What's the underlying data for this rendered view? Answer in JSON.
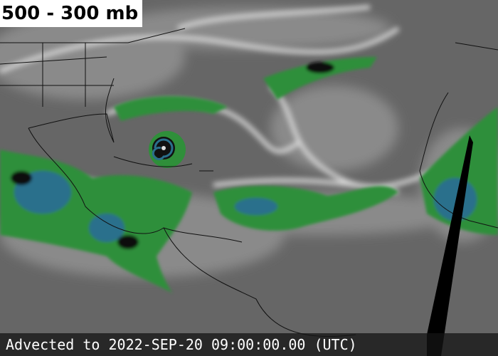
{
  "title": "500 - 300 mb",
  "caption": "Advected to 2022-SEP-20 09:00:00.00 (UTC)"
}
